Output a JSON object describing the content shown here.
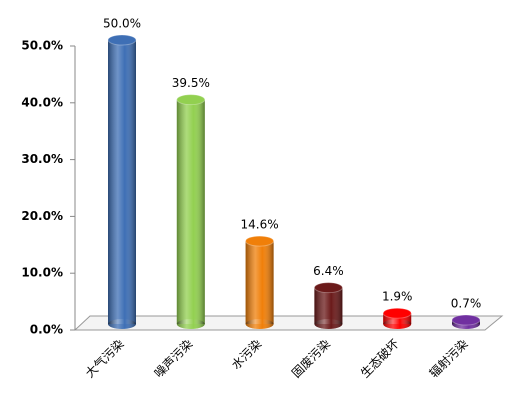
{
  "chart_data": {
    "type": "bar",
    "categories": [
      "大气污染",
      "噪声污染",
      "水污染",
      "固废污染",
      "生态破坏",
      "辐射污染"
    ],
    "values": [
      50.0,
      39.5,
      14.6,
      6.4,
      1.9,
      0.7
    ],
    "value_labels": [
      "50.0%",
      "39.5%",
      "14.6%",
      "6.4%",
      "1.9%",
      "0.7%"
    ],
    "colors": [
      "#3e6fb5",
      "#92d050",
      "#f07f09",
      "#6b1a1a",
      "#ff0000",
      "#7030a0"
    ],
    "ylim": [
      0,
      50
    ],
    "yticks": [
      {
        "value": 0,
        "label": "0.0%"
      },
      {
        "value": 10,
        "label": "10.0%"
      },
      {
        "value": 20,
        "label": "20.0%"
      },
      {
        "value": 30,
        "label": "30.0%"
      },
      {
        "value": 40,
        "label": "40.0%"
      },
      {
        "value": 50,
        "label": "50.0%"
      }
    ],
    "grid": false
  }
}
